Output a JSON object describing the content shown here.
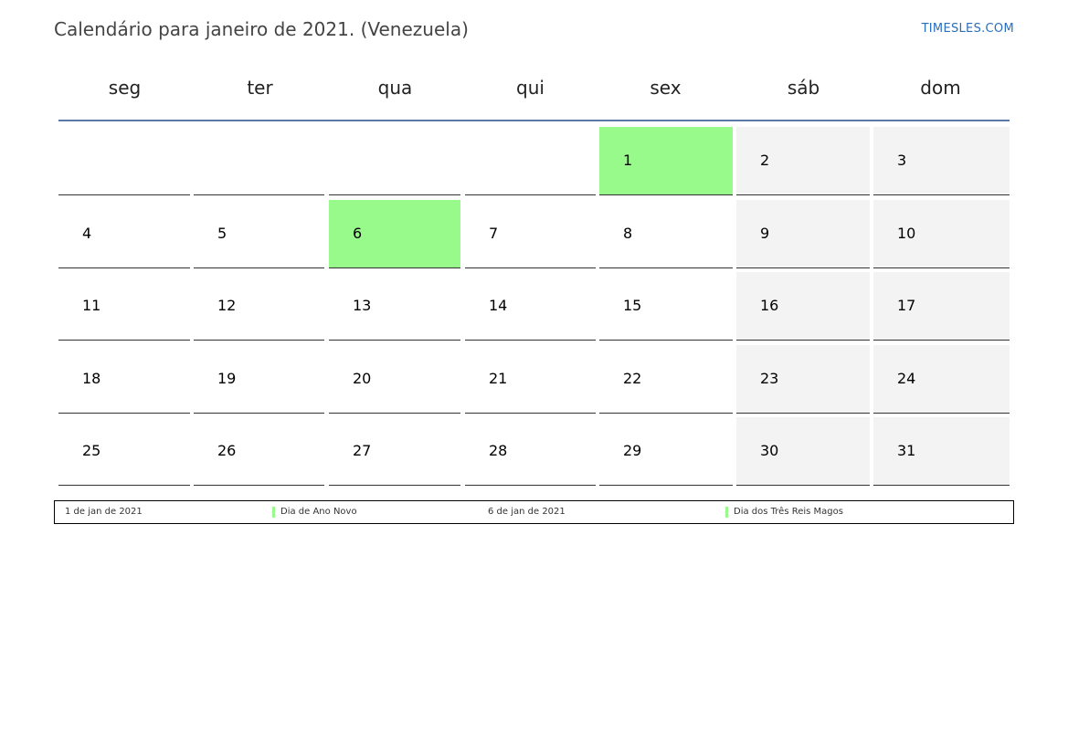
{
  "title": "Calendário para janeiro de 2021. (Venezuela)",
  "brand": "TIMESLES.COM",
  "weekdays": [
    "seg",
    "ter",
    "qua",
    "qui",
    "sex",
    "sáb",
    "dom"
  ],
  "weeks": [
    [
      "",
      "",
      "",
      "",
      "1",
      "2",
      "3"
    ],
    [
      "4",
      "5",
      "6",
      "7",
      "8",
      "9",
      "10"
    ],
    [
      "11",
      "12",
      "13",
      "14",
      "15",
      "16",
      "17"
    ],
    [
      "18",
      "19",
      "20",
      "21",
      "22",
      "23",
      "24"
    ],
    [
      "25",
      "26",
      "27",
      "28",
      "29",
      "30",
      "31"
    ]
  ],
  "holiday_days": [
    "1",
    "6"
  ],
  "colors": {
    "holiday": "#99fa8c",
    "weekend": "#f3f3f3",
    "header_line": "#5b7aa3",
    "brand": "#2a6ebb"
  },
  "legend": [
    {
      "date": "1 de jan de 2021",
      "name": "Dia de Ano Novo"
    },
    {
      "date": "6 de jan de 2021",
      "name": "Dia dos Três Reis Magos"
    }
  ]
}
